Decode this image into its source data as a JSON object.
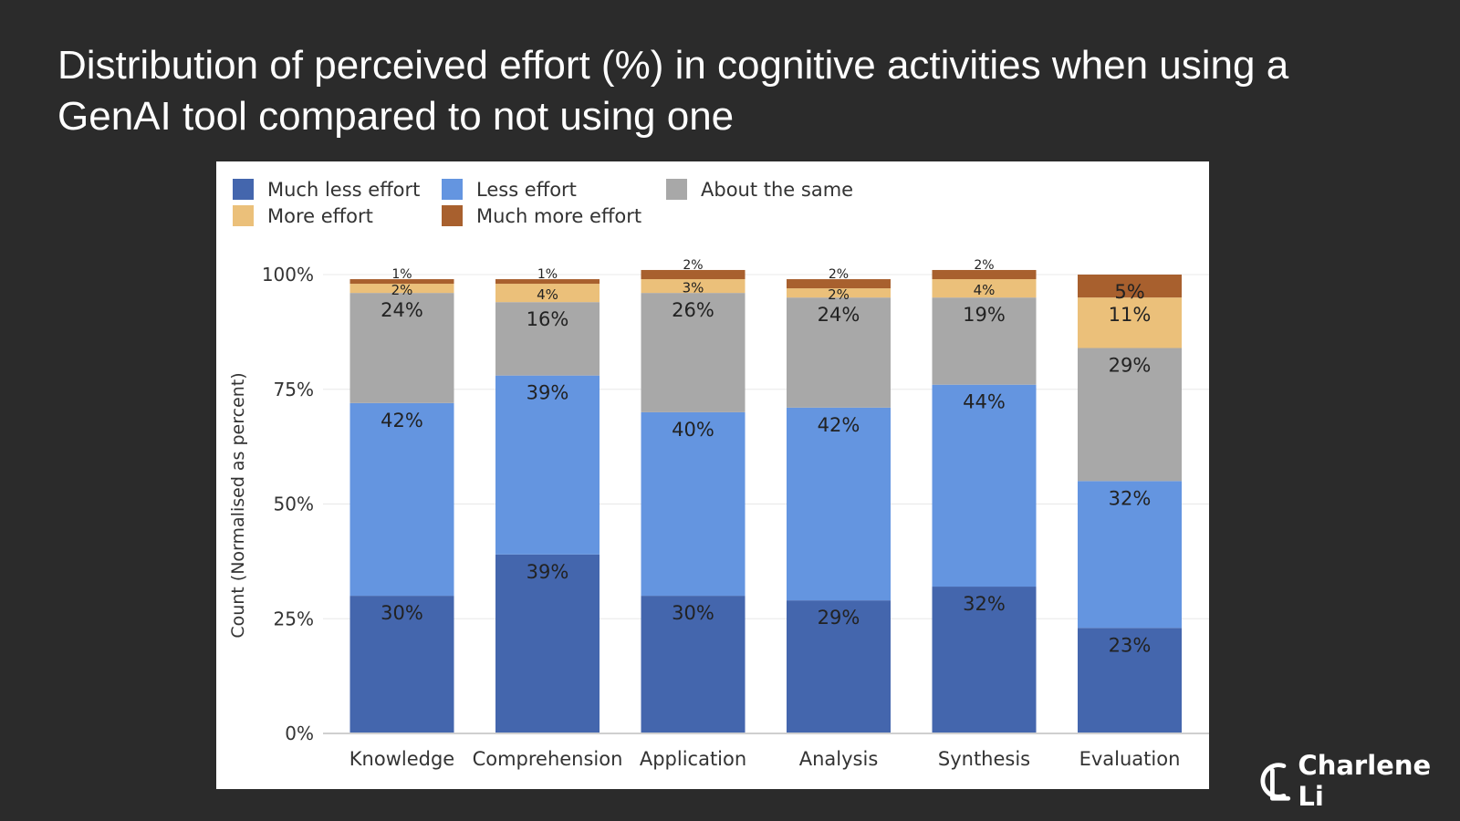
{
  "slide": {
    "title": "Distribution of perceived effort (%) in cognitive activities when using a GenAI tool compared to not using one"
  },
  "brand": {
    "name": "Charlene Li"
  },
  "chart_data": {
    "type": "bar",
    "stacked": true,
    "title": "",
    "xlabel": "",
    "ylabel": "Count (Normalised as percent)",
    "ylim": [
      0,
      100
    ],
    "y_ticks": [
      "0%",
      "25%",
      "50%",
      "75%",
      "100%"
    ],
    "grid": true,
    "legend_position": "top-left",
    "categories": [
      "Knowledge",
      "Comprehension",
      "Application",
      "Analysis",
      "Synthesis",
      "Evaluation"
    ],
    "series": [
      {
        "name": "Much less effort",
        "color": "#4466ad",
        "values": [
          30,
          39,
          30,
          29,
          32,
          23
        ],
        "labels": [
          "30%",
          "39%",
          "30%",
          "29%",
          "32%",
          "23%"
        ]
      },
      {
        "name": "Less effort",
        "color": "#6495e0",
        "values": [
          42,
          39,
          40,
          42,
          44,
          32
        ],
        "labels": [
          "42%",
          "39%",
          "40%",
          "42%",
          "44%",
          "32%"
        ]
      },
      {
        "name": "About the same",
        "color": "#a8a8a8",
        "values": [
          24,
          16,
          26,
          24,
          19,
          29
        ],
        "labels": [
          "24%",
          "16%",
          "26%",
          "24%",
          "19%",
          "29%"
        ]
      },
      {
        "name": "More effort",
        "color": "#ebc07a",
        "values": [
          2,
          4,
          3,
          2,
          4,
          11
        ],
        "labels": [
          "2%",
          "4%",
          "3%",
          "2%",
          "4%",
          "11%"
        ]
      },
      {
        "name": "Much more effort",
        "color": "#a8602e",
        "values": [
          1,
          1,
          2,
          2,
          2,
          5
        ],
        "labels": [
          "1%",
          "1%",
          "2%",
          "2%",
          "2%",
          "5%"
        ]
      }
    ]
  }
}
